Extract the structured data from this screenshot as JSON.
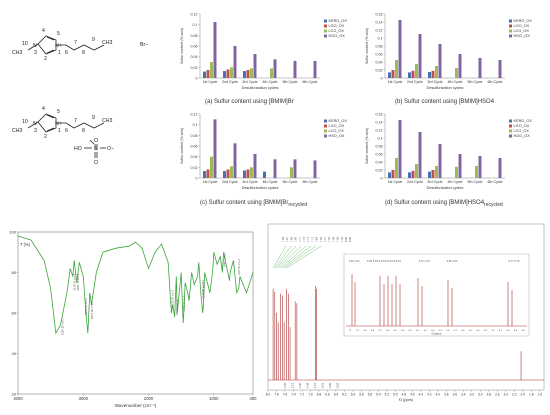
{
  "structures": {
    "top": {
      "atom_labels": [
        "CH3",
        "10",
        "N",
        "3",
        "2",
        "4",
        "5",
        "N+",
        "1",
        "6",
        "7",
        "8",
        "9",
        "CH3",
        "Br−"
      ]
    },
    "bottom": {
      "atom_labels": [
        "CH3",
        "10",
        "N",
        "3",
        "2",
        "4",
        "5",
        "N+",
        "1",
        "6",
        "7",
        "8",
        "9",
        "CH3",
        "HSO4−"
      ],
      "anion_text": {
        "o_top": "O",
        "o_left": "HO",
        "s": "S",
        "o_right": "O−",
        "o_bottom": "O"
      }
    }
  },
  "bar_panels": [
    {
      "caption_prefix": "(a)  Sulfur content using [BMIM]Br",
      "caption_sub": ""
    },
    {
      "caption_prefix": "(b)  Sulfur content using [BMIM]HSO4",
      "caption_sub": ""
    },
    {
      "caption_prefix": "(c)  Sulfur content using [BMIM]Br",
      "caption_sub": "recycled"
    },
    {
      "caption_prefix": "(d)  Sulfur content using [BMIM]HSO4",
      "caption_sub": "recycled"
    }
  ],
  "chart_data": [
    {
      "type": "bar",
      "ylabel": "Sulfur content (% w/w)",
      "xlabel": "Desulfurization cycles",
      "ylim": [
        0,
        0.12
      ],
      "yticks": [
        "0",
        "0.02",
        "0.04",
        "0.06",
        "0.08",
        "0.1",
        "0.12"
      ],
      "categories": [
        "1st Cycle",
        "2nd Cycle",
        "3rd Cycle",
        "4th Cycle",
        "5th Cycle",
        "6th Cycle"
      ],
      "series": [
        {
          "name": "KERO_OX",
          "color": "#4a6fb5",
          "values": [
            0.012,
            0.013,
            0.013,
            0.0,
            0.0,
            0.0
          ]
        },
        {
          "name": "LGO_OX",
          "color": "#c0504d",
          "values": [
            0.015,
            0.016,
            0.015,
            0.0,
            0.0,
            0.0
          ]
        },
        {
          "name": "LCO_OX",
          "color": "#9bbb59",
          "values": [
            0.03,
            0.02,
            0.018,
            0.018,
            0.0,
            0.0
          ]
        },
        {
          "name": "HGO_OX",
          "color": "#8064a2",
          "values": [
            0.105,
            0.06,
            0.045,
            0.035,
            0.032,
            0.032
          ]
        }
      ],
      "legend": "top-right"
    },
    {
      "type": "bar",
      "ylabel": "Sulfur content (% w/w)",
      "xlabel": "Desulfurization cycles",
      "ylim": [
        0,
        0.16
      ],
      "yticks": [
        "0",
        "0.02",
        "0.04",
        "0.06",
        "0.08",
        "0.1",
        "0.12",
        "0.14",
        "0.16"
      ],
      "categories": [
        "1st Cycle",
        "2nd Cycle",
        "3rd Cycle",
        "4th Cycle",
        "5th Cycle",
        "6th Cycle"
      ],
      "series": [
        {
          "name": "KERO_OX",
          "color": "#4a6fb5",
          "values": [
            0.014,
            0.014,
            0.015,
            0.0,
            0.0,
            0.0
          ]
        },
        {
          "name": "LGO_OX",
          "color": "#c0504d",
          "values": [
            0.02,
            0.018,
            0.018,
            0.0,
            0.0,
            0.0
          ]
        },
        {
          "name": "LCO_OX",
          "color": "#9bbb59",
          "values": [
            0.045,
            0.035,
            0.03,
            0.025,
            0.0,
            0.0
          ]
        },
        {
          "name": "HGO_OX",
          "color": "#8064a2",
          "values": [
            0.145,
            0.11,
            0.085,
            0.06,
            0.05,
            0.045
          ]
        }
      ],
      "legend": "top-right"
    },
    {
      "type": "bar",
      "ylabel": "Sulfur content (% w/w)",
      "xlabel": "Desulfurization cycles",
      "ylim": [
        0,
        0.12
      ],
      "yticks": [
        "0",
        "0.02",
        "0.04",
        "0.06",
        "0.08",
        "0.1",
        "0.12"
      ],
      "categories": [
        "1st Cycle",
        "2nd Cycle",
        "3rd Cycle",
        "4th Cycle",
        "5th Cycle",
        "6th Cycle"
      ],
      "series": [
        {
          "name": "KERO_OX",
          "color": "#4a6fb5",
          "values": [
            0.013,
            0.013,
            0.014,
            0.012,
            0.0,
            0.0
          ]
        },
        {
          "name": "LGO_OX",
          "color": "#c0504d",
          "values": [
            0.016,
            0.016,
            0.016,
            0.0,
            0.0,
            0.0
          ]
        },
        {
          "name": "LCO_OX",
          "color": "#9bbb59",
          "values": [
            0.04,
            0.022,
            0.02,
            0.0,
            0.02,
            0.0
          ]
        },
        {
          "name": "HSO_OX",
          "color": "#8064a2",
          "values": [
            0.11,
            0.065,
            0.045,
            0.035,
            0.035,
            0.033
          ]
        }
      ],
      "legend": "top-right"
    },
    {
      "type": "bar",
      "ylabel": "Sulfur content (% w/w)",
      "xlabel": "Desulfurization cycles",
      "ylim": [
        0,
        0.16
      ],
      "yticks": [
        "0",
        "0.02",
        "0.04",
        "0.06",
        "0.08",
        "0.1",
        "0.12",
        "0.14",
        "0.16"
      ],
      "categories": [
        "1st Cycle",
        "2nd Cycle",
        "3rd Cycle",
        "4th Cycle",
        "5th Cycle",
        "6th Cycle"
      ],
      "series": [
        {
          "name": "KERO_OX",
          "color": "#4a6fb5",
          "values": [
            0.014,
            0.014,
            0.016,
            0.0,
            0.0,
            0.0
          ]
        },
        {
          "name": "LGO_OX",
          "color": "#c0504d",
          "values": [
            0.02,
            0.018,
            0.02,
            0.0,
            0.0,
            0.0
          ]
        },
        {
          "name": "LCO_OX",
          "color": "#9bbb59",
          "values": [
            0.05,
            0.035,
            0.03,
            0.028,
            0.03,
            0.0
          ]
        },
        {
          "name": "HGO_OX",
          "color": "#8064a2",
          "values": [
            0.145,
            0.115,
            0.085,
            0.06,
            0.055,
            0.05
          ]
        }
      ],
      "legend": "top-right"
    },
    {
      "type": "line",
      "ylabel": "T (%)",
      "xlabel": "Wavenumber (cm⁻¹)",
      "xlim": [
        4000,
        400
      ],
      "ylim": [
        20,
        100
      ],
      "xticks": [
        "4000",
        "3000",
        "2000",
        "1000",
        "400"
      ],
      "yticks": [
        "20",
        "40",
        "60",
        "80",
        "100"
      ],
      "color": "#3aa53a",
      "x": [
        4000,
        3800,
        3600,
        3500,
        3420,
        3350,
        3250,
        3200,
        3160,
        3140,
        3100,
        3060,
        3000,
        2960,
        2930,
        2900,
        2875,
        2800,
        2700,
        2500,
        2300,
        2200,
        2100,
        2000,
        1900,
        1800,
        1700,
        1650,
        1630,
        1600,
        1575,
        1560,
        1500,
        1470,
        1460,
        1440,
        1400,
        1380,
        1340,
        1300,
        1250,
        1230,
        1200,
        1170,
        1160,
        1140,
        1100,
        1060,
        1020,
        1000,
        950,
        900,
        870,
        850,
        800,
        760,
        750,
        700,
        650,
        620,
        600,
        500,
        400
      ],
      "y": [
        98,
        96,
        86,
        72,
        50,
        54,
        70,
        82,
        78,
        86,
        75,
        85,
        78,
        60,
        50,
        70,
        64,
        80,
        90,
        92,
        93,
        95,
        92,
        82,
        90,
        94,
        85,
        60,
        64,
        58,
        78,
        60,
        80,
        55,
        60,
        75,
        70,
        66,
        80,
        74,
        78,
        85,
        70,
        60,
        64,
        80,
        75,
        70,
        80,
        90,
        84,
        88,
        80,
        90,
        82,
        76,
        80,
        86,
        70,
        72,
        78,
        70,
        80
      ],
      "annotations": [
        "3325.95 cm-1",
        "3139.22 cm-1",
        "3087.74 cm-1",
        "2963.84 cm-1",
        "2873.86 cm-1",
        "1639.56 cm-1",
        "1573.1 cm-1",
        "1463.2 cm-1",
        "1171.6 cm-1",
        "1164.06 cm-1",
        "844.2 cm-1",
        "622.56 cm-1"
      ]
    },
    {
      "type": "line",
      "xlabel": "f1 (ppm)",
      "xlim": [
        8.0,
        1.5
      ],
      "xticks": [
        "8.0",
        "7.8",
        "7.6",
        "7.4",
        "7.2",
        "7.0",
        "6.8",
        "6.6",
        "6.4",
        "6.2",
        "6.0",
        "5.8",
        "5.6",
        "5.4",
        "5.2",
        "5.0",
        "4.8",
        "4.6",
        "4.4",
        "4.2",
        "4.0",
        "3.8",
        "3.6",
        "3.4",
        "3.2",
        "3.0",
        "2.8",
        "2.6",
        "2.4",
        "2.2",
        "2.0",
        "1.8",
        "1.6"
      ],
      "color": "#b03030",
      "peaks_ppm": [
        7.88,
        7.84,
        7.8,
        7.76,
        7.71,
        7.66,
        7.62,
        7.56,
        7.52,
        7.48,
        7.36,
        7.32,
        6.88,
        6.86,
        2.04
      ],
      "peaks_height": [
        0.95,
        0.92,
        0.7,
        0.6,
        0.9,
        0.88,
        0.6,
        0.95,
        0.9,
        0.55,
        0.82,
        0.8,
        0.98,
        0.95,
        0.3
      ],
      "integrals": [
        "1.05",
        "1.12",
        "1.00",
        "1.08",
        "1.01",
        "2.01",
        "3.00",
        "2.02"
      ],
      "peak_labels": [
        "7.88",
        "7.87",
        "7.84",
        "7.80",
        "7.77",
        "7.76",
        "7.72",
        "7.71",
        "7.66",
        "7.62",
        "7.57",
        "7.52",
        "7.48",
        "7.36",
        "7.32",
        "6.88",
        "6.86"
      ],
      "inset": {
        "xticks": [
          "7.1",
          "7.0",
          "6.9",
          "6.8",
          "6.7",
          "6.6",
          "6.5",
          "6.4",
          "6.3",
          "6.2",
          "6.1",
          "6.0",
          "5.9",
          "5.8",
          "5.7",
          "5.6",
          "5.5",
          "5.4",
          "5.3",
          "5.2",
          "5.1",
          "5.0",
          "4.9",
          "4.8"
        ],
        "xlabel": "f1 (ppm)",
        "group_labels": [
          "7.06\n7.04",
          "5.20 5.18 5.16\n5.14 5.12 5.10",
          "4.72\n4.70",
          "4.56\n4.54",
          "6.77\n6.76"
        ]
      }
    }
  ]
}
